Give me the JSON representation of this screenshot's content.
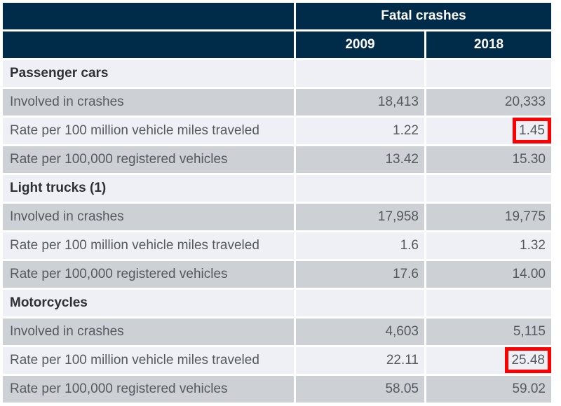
{
  "header": {
    "group_label": "Fatal crashes",
    "years": [
      "2009",
      "2018"
    ]
  },
  "highlight_color": "#ff0000",
  "rows": [
    {
      "type": "section",
      "label": "Passenger cars",
      "v2009": "",
      "v2018": ""
    },
    {
      "type": "data",
      "label": "Involved in crashes",
      "v2009": "18,413",
      "v2018": "20,333"
    },
    {
      "type": "data",
      "label": "Rate per 100 million vehicle miles traveled",
      "v2009": "1.22",
      "v2018": "1.45",
      "highlight_2018": true
    },
    {
      "type": "data",
      "label": "Rate per 100,000 registered vehicles",
      "v2009": "13.42",
      "v2018": "15.30"
    },
    {
      "type": "section",
      "label": "Light trucks (1)",
      "v2009": "",
      "v2018": ""
    },
    {
      "type": "data",
      "label": "Involved in crashes",
      "v2009": "17,958",
      "v2018": "19,775"
    },
    {
      "type": "data",
      "label": "Rate per 100 million vehicle miles traveled",
      "v2009": "1.6",
      "v2018": "1.32"
    },
    {
      "type": "data",
      "label": "Rate per 100,000 registered vehicles",
      "v2009": "17.6",
      "v2018": "14.00"
    },
    {
      "type": "section",
      "label": "Motorcycles",
      "v2009": "",
      "v2018": ""
    },
    {
      "type": "data",
      "label": "Involved in crashes",
      "v2009": "4,603",
      "v2018": "5,115"
    },
    {
      "type": "data",
      "label": "Rate per 100 million vehicle miles traveled",
      "v2009": "22.11",
      "v2018": "25.48",
      "highlight_2018": true
    },
    {
      "type": "data",
      "label": "Rate per 100,000 registered vehicles",
      "v2009": "58.05",
      "v2018": "59.02"
    }
  ]
}
